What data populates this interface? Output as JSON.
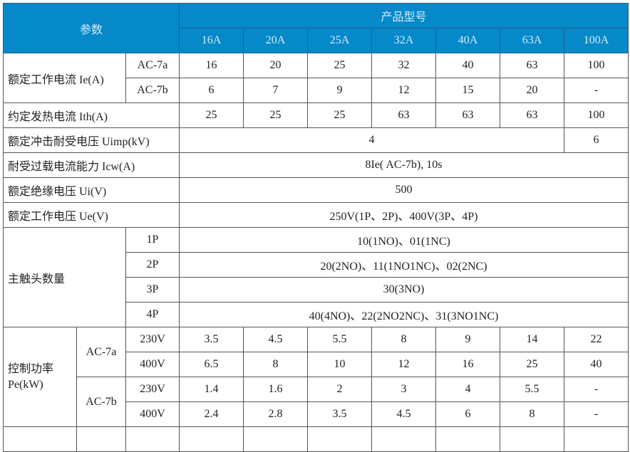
{
  "header": {
    "param": "参数",
    "model": "产品型号",
    "models": [
      "16A",
      "20A",
      "25A",
      "32A",
      "40A",
      "63A",
      "100A"
    ]
  },
  "ie": {
    "label": "额定工作电流 Ie(A)",
    "ac7a": {
      "label": "AC-7a",
      "values": [
        "16",
        "20",
        "25",
        "32",
        "40",
        "63",
        "100"
      ]
    },
    "ac7b": {
      "label": "AC-7b",
      "values": [
        "6",
        "7",
        "9",
        "12",
        "15",
        "20",
        "-"
      ]
    }
  },
  "ith": {
    "label": "约定发热电流 Ith(A)",
    "values": [
      "25",
      "25",
      "25",
      "63",
      "63",
      "63",
      "100"
    ]
  },
  "uimp": {
    "label": "额定冲击耐受电压 Uimp(kV)",
    "value_16_63": "4",
    "value_100": "6"
  },
  "icw": {
    "label": "耐受过载电流能力 Icw(A)",
    "value": "8Ie( AC-7b), 10s"
  },
  "ui": {
    "label": "额定绝缘电压 Ui(V)",
    "value": "500"
  },
  "ue": {
    "label": "额定工作电压 Ue(V)",
    "value": "250V(1P、2P)、400V(3P、4P)"
  },
  "contacts": {
    "label": "主触头数量",
    "rows": [
      {
        "poles": "1P",
        "value": "10(1NO)、01(1NC)"
      },
      {
        "poles": "2P",
        "value": "20(2NO)、11(1NO1NC)、02(2NC)"
      },
      {
        "poles": "3P",
        "value": "30(3NO)"
      },
      {
        "poles": "4P",
        "value": "40(4NO)、22(2NO2NC)、31(3NO1NC)"
      }
    ]
  },
  "pe": {
    "label1": "控制功率",
    "label2": "Pe(kW)",
    "ac7a": {
      "label": "AC-7a",
      "v230": {
        "label": "230V",
        "values": [
          "3.5",
          "4.5",
          "5.5",
          "8",
          "9",
          "14",
          "22"
        ]
      },
      "v400": {
        "label": "400V",
        "values": [
          "6.5",
          "8",
          "10",
          "12",
          "16",
          "25",
          "40"
        ]
      }
    },
    "ac7b": {
      "label": "AC-7b",
      "v230": {
        "label": "230V",
        "values": [
          "1.4",
          "1.6",
          "2",
          "3",
          "4",
          "5.5",
          "-"
        ]
      },
      "v400": {
        "label": "400V",
        "values": [
          "2.4",
          "2.8",
          "3.5",
          "4.5",
          "6",
          "8",
          "-"
        ]
      }
    }
  },
  "colors": {
    "header_bg": "#0689c9",
    "header_text": "#d4ecfa"
  }
}
